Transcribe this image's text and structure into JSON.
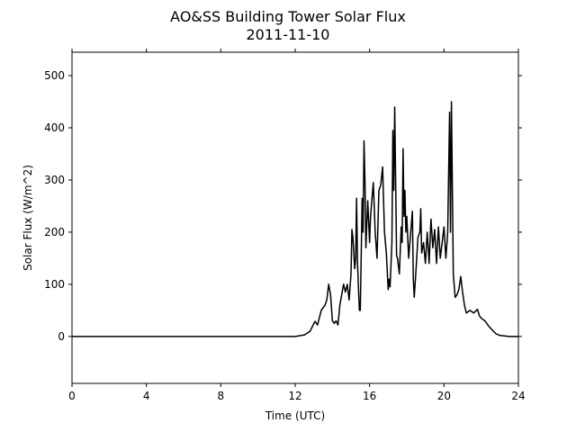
{
  "chart_data": {
    "type": "line",
    "title": "AO&SS Building Tower Solar Flux",
    "subtitle": "2011-11-10",
    "xlabel": "Time (UTC)",
    "ylabel": "Solar Flux (W/m^2)",
    "xlim": [
      0,
      24
    ],
    "xticks": [
      0,
      4,
      8,
      12,
      16,
      20,
      24
    ],
    "ylim": [
      -90,
      545
    ],
    "yticks": [
      0,
      100,
      200,
      300,
      400,
      500
    ],
    "series": [
      {
        "color": "#000000",
        "x": [
          0,
          12,
          12.5,
          12.8,
          13.06,
          13.2,
          13.4,
          13.6,
          13.7,
          13.8,
          13.9,
          14.0,
          14.1,
          14.2,
          14.3,
          14.4,
          14.5,
          14.6,
          14.7,
          14.8,
          14.9,
          15.0,
          15.05,
          15.1,
          15.2,
          15.25,
          15.3,
          15.35,
          15.45,
          15.5,
          15.6,
          15.65,
          15.7,
          15.75,
          15.8,
          15.9,
          16.0,
          16.05,
          16.2,
          16.3,
          16.4,
          16.5,
          16.6,
          16.7,
          16.8,
          16.9,
          17.0,
          17.05,
          17.1,
          17.2,
          17.25,
          17.3,
          17.35,
          17.4,
          17.45,
          17.5,
          17.6,
          17.7,
          17.75,
          17.8,
          17.85,
          17.9,
          17.95,
          18.0,
          18.1,
          18.2,
          18.3,
          18.35,
          18.4,
          18.5,
          18.6,
          18.7,
          18.75,
          18.8,
          18.9,
          19.0,
          19.1,
          19.2,
          19.3,
          19.4,
          19.5,
          19.6,
          19.7,
          19.8,
          19.9,
          20.0,
          20.1,
          20.2,
          20.3,
          20.35,
          20.4,
          20.5,
          20.6,
          20.7,
          20.8,
          20.9,
          21.0,
          21.1,
          21.2,
          21.4,
          21.6,
          21.8,
          21.9,
          22.0,
          22.2,
          22.4,
          22.6,
          22.8,
          23.0,
          23.5,
          24
        ],
        "values": [
          0,
          0,
          3,
          10,
          29,
          22,
          50,
          60,
          70,
          100,
          80,
          30,
          25,
          30,
          22,
          60,
          80,
          100,
          85,
          100,
          70,
          120,
          205,
          190,
          130,
          150,
          265,
          140,
          50,
          50,
          265,
          200,
          375,
          300,
          170,
          260,
          180,
          230,
          295,
          200,
          150,
          280,
          290,
          325,
          200,
          160,
          90,
          110,
          95,
          180,
          395,
          280,
          440,
          300,
          155,
          150,
          120,
          210,
          180,
          360,
          230,
          280,
          200,
          230,
          150,
          195,
          240,
          110,
          75,
          130,
          190,
          200,
          245,
          160,
          180,
          140,
          200,
          140,
          225,
          170,
          205,
          140,
          210,
          150,
          180,
          210,
          150,
          200,
          430,
          200,
          450,
          120,
          75,
          80,
          90,
          115,
          85,
          60,
          45,
          50,
          45,
          52,
          40,
          35,
          30,
          20,
          12,
          5,
          2,
          0,
          0
        ]
      }
    ]
  }
}
